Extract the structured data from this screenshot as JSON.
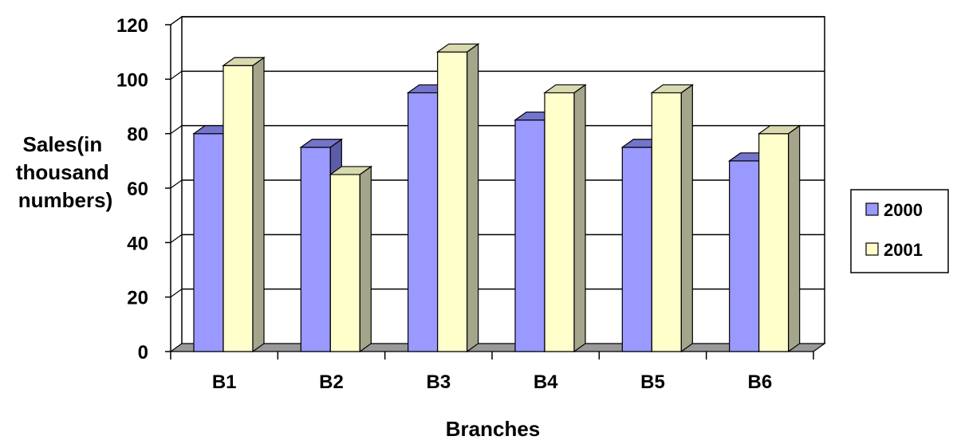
{
  "chart_data": {
    "type": "bar",
    "style": "3d-clustered-column",
    "categories": [
      "B1",
      "B2",
      "B3",
      "B4",
      "B5",
      "B6"
    ],
    "series": [
      {
        "name": "2000",
        "values": [
          80,
          75,
          95,
          85,
          75,
          70
        ]
      },
      {
        "name": "2001",
        "values": [
          105,
          65,
          110,
          95,
          95,
          80
        ]
      }
    ],
    "title": "",
    "xlabel": "Branches",
    "ylabel_lines": [
      "Sales(in",
      "thousand",
      "numbers)"
    ],
    "ylim": [
      0,
      120
    ],
    "yticks": [
      0,
      20,
      40,
      60,
      80,
      100,
      120
    ],
    "ytick_labels": [
      "0",
      "20",
      "40",
      "60",
      "80",
      "100",
      "120"
    ],
    "grid": true,
    "legend_position": "right",
    "colors": {
      "series": [
        "#9999ff",
        "#ffffcc"
      ],
      "series_side": [
        "#5c5ca8",
        "#a5a58c"
      ],
      "series_top": [
        "#7474cc",
        "#d9d9b0"
      ],
      "floor": "#999999",
      "wall": "#ffffff",
      "grid": "#000000"
    }
  }
}
